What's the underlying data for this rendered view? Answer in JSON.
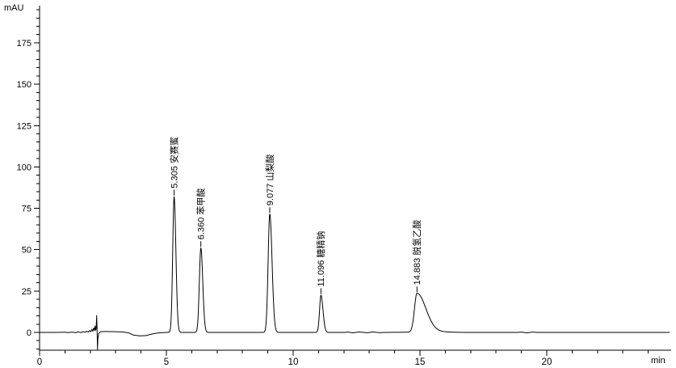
{
  "chart_data": {
    "type": "line",
    "title": "",
    "ylabel": "mAU",
    "xlabel": "min",
    "xlim": [
      0,
      24.9
    ],
    "ylim": [
      -11,
      197
    ],
    "x_major_ticks": [
      0,
      5,
      10,
      15,
      20
    ],
    "x_minor_step": 1,
    "x_minor_max": 24,
    "y_major_ticks": [
      0,
      25,
      50,
      75,
      100,
      125,
      150,
      175
    ],
    "y_minor_step": 5,
    "y_minor_min": -10,
    "y_minor_max": 195,
    "grid": false,
    "legend": "none",
    "colors": {
      "trace": "#000000",
      "axis": "#000000",
      "text": "#000000",
      "background": "#ffffff"
    },
    "peaks": [
      {
        "rt": 5.305,
        "rt_label": "5.305",
        "name": "安赛蜜",
        "height_mAU": 82,
        "sigma_left": 0.055,
        "sigma_right": 0.07
      },
      {
        "rt": 6.36,
        "rt_label": "6.360",
        "name": "苯甲酸",
        "height_mAU": 51,
        "sigma_left": 0.06,
        "sigma_right": 0.075
      },
      {
        "rt": 9.077,
        "rt_label": "9.077",
        "name": "山梨酸",
        "height_mAU": 71.5,
        "sigma_left": 0.065,
        "sigma_right": 0.09
      },
      {
        "rt": 11.096,
        "rt_label": "11.096",
        "name": "糖精钠",
        "height_mAU": 22.5,
        "sigma_left": 0.055,
        "sigma_right": 0.08
      },
      {
        "rt": 14.883,
        "rt_label": "14.883",
        "name": "脱氢乙酸",
        "height_mAU": 23.5,
        "sigma_left": 0.1,
        "sigma_right": 0.35
      }
    ],
    "baseline_anchors": [
      [
        0,
        0
      ],
      [
        0.6,
        0
      ],
      [
        1.0,
        0.1
      ],
      [
        1.15,
        -0.1
      ],
      [
        1.3,
        0.2
      ],
      [
        1.42,
        -0.2
      ],
      [
        1.52,
        0.35
      ],
      [
        1.62,
        -0.1
      ],
      [
        1.72,
        0.45
      ],
      [
        1.8,
        0.1
      ],
      [
        1.86,
        0.7
      ],
      [
        1.92,
        0.25
      ],
      [
        1.97,
        1.1
      ],
      [
        2.02,
        0.4
      ],
      [
        2.06,
        1.9
      ],
      [
        2.1,
        0.7
      ],
      [
        2.13,
        2.7
      ],
      [
        2.16,
        1.1
      ],
      [
        2.19,
        3.9
      ],
      [
        2.21,
        1.3
      ],
      [
        2.23,
        2.2
      ],
      [
        2.252,
        10.2
      ],
      [
        2.268,
        1.5
      ],
      [
        2.284,
        -10.3
      ],
      [
        2.3,
        -3.5
      ],
      [
        2.33,
        -0.7
      ],
      [
        2.4,
        0.45
      ],
      [
        2.6,
        0.55
      ],
      [
        2.9,
        0.45
      ],
      [
        3.25,
        0.3
      ],
      [
        3.5,
        -0.2
      ],
      [
        3.7,
        -1.6
      ],
      [
        3.95,
        -2.1
      ],
      [
        4.2,
        -1.9
      ],
      [
        4.45,
        -0.9
      ],
      [
        4.7,
        -0.25
      ],
      [
        5.0,
        0
      ],
      [
        7.6,
        0
      ],
      [
        12.05,
        0
      ],
      [
        12.15,
        0.25
      ],
      [
        12.35,
        -0.25
      ],
      [
        12.6,
        0.3
      ],
      [
        12.9,
        -0.2
      ],
      [
        13.15,
        0.25
      ],
      [
        13.4,
        -0.15
      ],
      [
        13.6,
        0
      ],
      [
        15.9,
        0.3
      ],
      [
        16.4,
        0.1
      ],
      [
        16.8,
        0
      ],
      [
        18.85,
        0
      ],
      [
        19.0,
        0.2
      ],
      [
        19.2,
        -0.25
      ],
      [
        19.45,
        0.2
      ],
      [
        19.65,
        0
      ],
      [
        24.85,
        0
      ]
    ]
  }
}
